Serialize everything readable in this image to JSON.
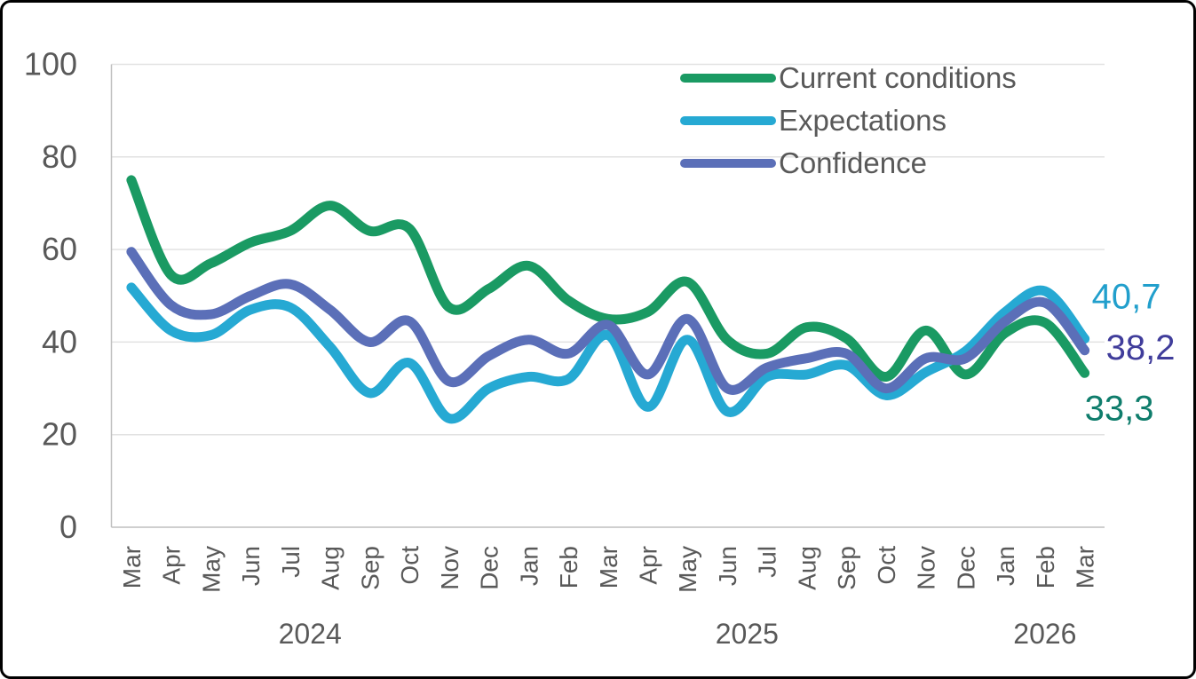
{
  "colors": {
    "background": "#FFFFFF",
    "frame_border": "#000000",
    "axis_text": "#595959",
    "gridline": "#E2E2E2",
    "axis_line": "#BFBFBF"
  },
  "chart_data": {
    "type": "line",
    "title": "",
    "xlabel": "",
    "ylabel": "",
    "ylim": [
      0,
      100
    ],
    "yticks": [
      0,
      20,
      40,
      60,
      80,
      100
    ],
    "grid": true,
    "legend_position": "top-right-inside",
    "smooth_lines": true,
    "categories": [
      "Mar",
      "Apr",
      "May",
      "Jun",
      "Jul",
      "Aug",
      "Sep",
      "Oct",
      "Nov",
      "Dec",
      "Jan",
      "Feb",
      "Mar",
      "Apr",
      "May",
      "Jun",
      "Jul",
      "Aug",
      "Sep",
      "Oct",
      "Nov",
      "Dec",
      "Jan",
      "Feb",
      "Mar"
    ],
    "year_groups": [
      {
        "label": "2024",
        "start_index": 0,
        "end_index": 9
      },
      {
        "label": "2025",
        "start_index": 10,
        "end_index": 21
      },
      {
        "label": "2026",
        "start_index": 22,
        "end_index": 24
      }
    ],
    "series": [
      {
        "name": "Current conditions",
        "color": "#1A9A63",
        "end_label": "33,3",
        "end_label_color": "#0F7D6C",
        "values": [
          75,
          54.5,
          57,
          61.5,
          64,
          69.5,
          64,
          64.5,
          47.5,
          51.5,
          56.5,
          49,
          45,
          46.5,
          53,
          40.5,
          37.5,
          43.2,
          40.8,
          32.5,
          42.5,
          33,
          42,
          44.2,
          33.3
        ]
      },
      {
        "name": "Expectations",
        "color": "#26A9D3",
        "end_label": "40,7",
        "end_label_color": "#219FCC",
        "values": [
          51.8,
          42.5,
          41.5,
          47,
          47.5,
          39,
          29,
          35.5,
          23.5,
          30,
          32.5,
          32,
          41.5,
          26,
          40.5,
          25,
          32.5,
          33,
          35,
          28.5,
          33.5,
          38,
          46.5,
          51,
          40.7
        ]
      },
      {
        "name": "Confidence",
        "color": "#5B6FB8",
        "end_label": "38,2",
        "end_label_color": "#403D9B",
        "values": [
          59.5,
          48,
          46,
          50,
          52.5,
          47,
          40,
          44.5,
          31.5,
          37,
          40.5,
          37.5,
          43.7,
          33,
          45,
          30,
          34.5,
          36.5,
          37.5,
          30,
          36.5,
          36.5,
          44.5,
          48.5,
          38.2
        ]
      }
    ]
  }
}
